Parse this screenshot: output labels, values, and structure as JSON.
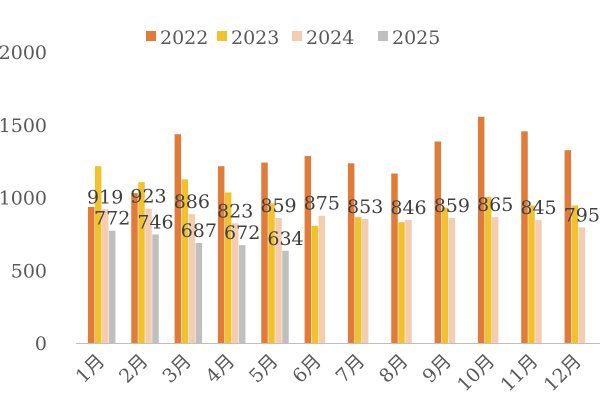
{
  "chart_data": {
    "type": "bar",
    "title": "",
    "xlabel": "",
    "ylabel": "",
    "ylim": [
      0,
      2000
    ],
    "yticks": [
      "0",
      "500",
      "1000",
      "1500",
      "2000"
    ],
    "grid": false,
    "legend_position": "top",
    "categories": [
      "1月",
      "2月",
      "3月",
      "4月",
      "5月",
      "6月",
      "7月",
      "8月",
      "9月",
      "10月",
      "11月",
      "12月"
    ],
    "series": [
      {
        "name": "2022",
        "color": "#E07B39",
        "values": [
          935,
          1030,
          1435,
          1215,
          1240,
          1285,
          1235,
          1165,
          1385,
          1555,
          1455,
          1325
        ]
      },
      {
        "name": "2023",
        "color": "#F2C12E",
        "values": [
          1215,
          1105,
          1125,
          1035,
          960,
          805,
          865,
          830,
          930,
          1005,
          945,
          945
        ]
      },
      {
        "name": "2024",
        "color": "#F4CDB0",
        "values": [
          919,
          923,
          886,
          823,
          859,
          875,
          853,
          846,
          859,
          865,
          845,
          795
        ]
      },
      {
        "name": "2025",
        "color": "#BFBFBF",
        "values": [
          772,
          746,
          687,
          672,
          634,
          null,
          null,
          null,
          null,
          null,
          null,
          null
        ]
      }
    ],
    "data_labels": [
      {
        "series": "2024",
        "labels": [
          "919",
          "923",
          "886",
          "823",
          "859",
          "875",
          "853",
          "846",
          "859",
          "865",
          "845",
          "795"
        ]
      },
      {
        "series": "2025",
        "labels": [
          "772",
          "746",
          "687",
          "672",
          "634",
          "",
          "",
          "",
          "",
          "",
          "",
          ""
        ]
      }
    ]
  }
}
